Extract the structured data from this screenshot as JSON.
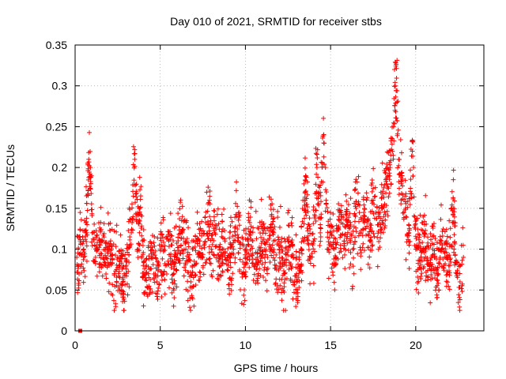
{
  "chart_data": {
    "type": "scatter",
    "title": "Day 010 of 2021, SRMTID for receiver stbs",
    "xlabel": "GPS time / hours",
    "ylabel": "SRMTID / TECUs",
    "xlim": [
      0,
      24
    ],
    "ylim": [
      0,
      0.35
    ],
    "x_ticks": [
      0,
      5,
      10,
      15,
      20
    ],
    "x_tick_labels": [
      "0",
      "5",
      "10",
      "15",
      "20"
    ],
    "y_ticks": [
      0,
      0.05,
      0.1,
      0.15,
      0.2,
      0.25,
      0.3,
      0.35
    ],
    "y_tick_labels": [
      "0",
      "0.05",
      "0.1",
      "0.15",
      "0.2",
      "0.25",
      "0.3",
      "0.35"
    ],
    "grid": true,
    "marker": "+",
    "color": "#ff0000",
    "series": [
      {
        "name": "SRMTID",
        "note": "approx. 2500 samples; representative points read from plot",
        "x": [
          0.1,
          0.2,
          0.3,
          0.5,
          0.7,
          0.8,
          0.9,
          1.0,
          1.2,
          1.5,
          1.8,
          2.0,
          2.3,
          2.5,
          2.8,
          3.0,
          3.3,
          3.5,
          3.7,
          3.8,
          4.0,
          4.3,
          4.5,
          4.8,
          5.0,
          5.3,
          5.5,
          5.8,
          6.0,
          6.3,
          6.5,
          6.8,
          7.0,
          7.3,
          7.5,
          7.8,
          8.0,
          8.2,
          8.5,
          8.8,
          9.0,
          9.3,
          9.5,
          9.8,
          10.0,
          10.3,
          10.5,
          10.8,
          11.0,
          11.3,
          11.5,
          11.8,
          12.0,
          12.3,
          12.5,
          12.8,
          13.0,
          13.3,
          13.5,
          13.8,
          14.0,
          14.2,
          14.4,
          14.6,
          14.8,
          15.0,
          15.3,
          15.5,
          15.8,
          16.0,
          16.3,
          16.5,
          16.8,
          17.0,
          17.3,
          17.5,
          17.8,
          18.0,
          18.3,
          18.5,
          18.7,
          18.8,
          18.9,
          19.0,
          19.2,
          19.4,
          19.6,
          19.8,
          20.0,
          20.3,
          20.5,
          20.8,
          21.0,
          21.3,
          21.5,
          21.8,
          22.0,
          22.2,
          22.4,
          22.6,
          22.8
        ],
        "y": [
          0.09,
          0.08,
          0.11,
          0.1,
          0.13,
          0.21,
          0.2,
          0.12,
          0.09,
          0.11,
          0.08,
          0.1,
          0.07,
          0.09,
          0.06,
          0.08,
          0.12,
          0.21,
          0.1,
          0.15,
          0.08,
          0.07,
          0.09,
          0.06,
          0.1,
          0.08,
          0.11,
          0.07,
          0.09,
          0.12,
          0.1,
          0.06,
          0.08,
          0.11,
          0.09,
          0.13,
          0.1,
          0.12,
          0.09,
          0.11,
          0.08,
          0.1,
          0.14,
          0.07,
          0.09,
          0.12,
          0.08,
          0.1,
          0.11,
          0.09,
          0.13,
          0.08,
          0.1,
          0.07,
          0.11,
          0.09,
          0.06,
          0.1,
          0.17,
          0.09,
          0.11,
          0.2,
          0.13,
          0.24,
          0.1,
          0.12,
          0.09,
          0.14,
          0.11,
          0.13,
          0.1,
          0.15,
          0.12,
          0.14,
          0.11,
          0.16,
          0.13,
          0.15,
          0.18,
          0.2,
          0.25,
          0.3,
          0.28,
          0.21,
          0.19,
          0.15,
          0.12,
          0.22,
          0.1,
          0.09,
          0.12,
          0.08,
          0.1,
          0.07,
          0.11,
          0.09,
          0.08,
          0.15,
          0.07,
          0.06,
          0.09
        ]
      },
      {
        "name": "marker at origin",
        "x": [
          0.3
        ],
        "y": [
          0.0
        ]
      }
    ]
  }
}
